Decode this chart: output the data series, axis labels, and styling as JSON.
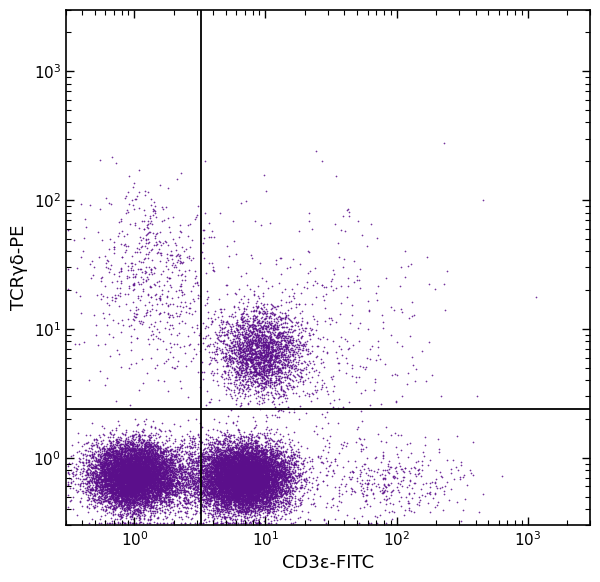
{
  "title": "",
  "xlabel": "CD3ε-FITC",
  "ylabel": "TCRγδ-PE",
  "xlim": [
    0.3,
    3000
  ],
  "ylim": [
    0.3,
    3000
  ],
  "dot_color": "#5B0F8B",
  "background_color": "#ffffff",
  "gate_x": 3.2,
  "gate_y": 2.4,
  "seed": 42,
  "xlabel_fontsize": 13,
  "ylabel_fontsize": 13,
  "tick_fontsize": 11
}
